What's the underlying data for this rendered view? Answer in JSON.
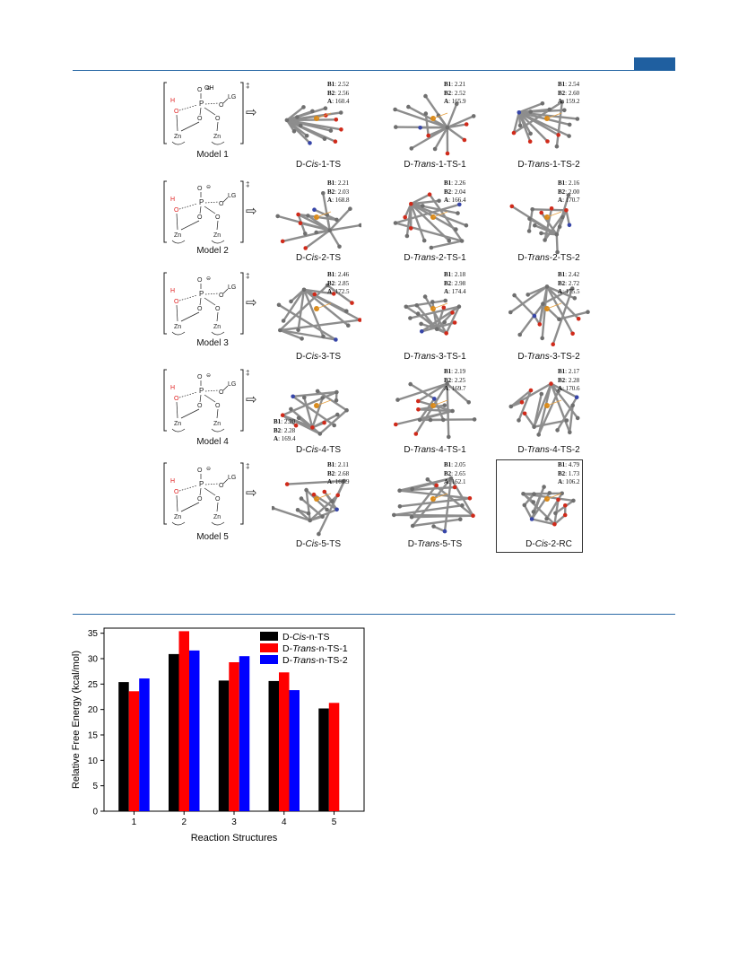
{
  "figure": {
    "rows": [
      {
        "model": "Model 1",
        "structures": [
          {
            "label_prefix": "D-",
            "label_italic": "Cis",
            "label_suffix": "-1-TS",
            "B1": "2.52",
            "B2": "2.56",
            "A": "160.4"
          },
          {
            "label_prefix": "D-",
            "label_italic": "Trans",
            "label_suffix": "-1-TS-1",
            "B1": "2.21",
            "B2": "2.52",
            "A": "165.9"
          },
          {
            "label_prefix": "D-",
            "label_italic": "Trans",
            "label_suffix": "-1-TS-2",
            "B1": "2.54",
            "B2": "2.60",
            "A": "159.2"
          }
        ]
      },
      {
        "model": "Model 2",
        "structures": [
          {
            "label_prefix": "D-",
            "label_italic": "Cis",
            "label_suffix": "-2-TS",
            "B1": "2.21",
            "B2": "2.03",
            "A": "168.8"
          },
          {
            "label_prefix": "D-",
            "label_italic": "Trans",
            "label_suffix": "-2-TS-1",
            "B1": "2.26",
            "B2": "2.04",
            "A": "166.4"
          },
          {
            "label_prefix": "D-",
            "label_italic": "Trans",
            "label_suffix": "-2-TS-2",
            "B1": "2.16",
            "B2": "2.00",
            "A": "170.7"
          }
        ]
      },
      {
        "model": "Model 3",
        "structures": [
          {
            "label_prefix": "D-",
            "label_italic": "Cis",
            "label_suffix": "-3-TS",
            "B1": "2.46",
            "B2": "2.85",
            "A": "172.5"
          },
          {
            "label_prefix": "D-",
            "label_italic": "Trans",
            "label_suffix": "-3-TS-1",
            "B1": "2.18",
            "B2": "2.98",
            "A": "174.4"
          },
          {
            "label_prefix": "D-",
            "label_italic": "Trans",
            "label_suffix": "-3-TS-2",
            "B1": "2.42",
            "B2": "2.72",
            "A": "175.5"
          }
        ]
      },
      {
        "model": "Model 4",
        "structures": [
          {
            "label_prefix": "D-",
            "label_italic": "Cis",
            "label_suffix": "-4-TS",
            "B1": "2.20",
            "B2": "2.28",
            "A": "169.4"
          },
          {
            "label_prefix": "D-",
            "label_italic": "Trans",
            "label_suffix": "-4-TS-1",
            "B1": "2.19",
            "B2": "2.25",
            "A": "169.7"
          },
          {
            "label_prefix": "D-",
            "label_italic": "Trans",
            "label_suffix": "-4-TS-2",
            "B1": "2.17",
            "B2": "2.28",
            "A": "170.6"
          }
        ]
      },
      {
        "model": "Model 5",
        "structures": [
          {
            "label_prefix": "D-",
            "label_italic": "Cis",
            "label_suffix": "-5-TS",
            "B1": "2.11",
            "B2": "2.68",
            "A": "160.9"
          },
          {
            "label_prefix": "D-",
            "label_italic": "Trans",
            "label_suffix": "-5-TS",
            "B1": "2.05",
            "B2": "2.65",
            "A": "162.1"
          },
          {
            "label_prefix": "D-",
            "label_italic": "Cis",
            "label_suffix": "-2-RC",
            "B1": "4.79",
            "B2": "1.73",
            "A": "106.2"
          }
        ]
      }
    ],
    "geo_keys": {
      "b1": "B1",
      "b2": "B2",
      "a": "A"
    },
    "scheme_text": {
      "lg": "LG",
      "zn": "Zn",
      "o": "O",
      "oh": "OH",
      "p": "P",
      "h": "H",
      "dagger": "‡",
      "minus": "⊖"
    }
  },
  "chart_data": {
    "type": "bar",
    "categories": [
      "1",
      "2",
      "3",
      "4",
      "5"
    ],
    "series": [
      {
        "name": "D-Cis-n-TS",
        "name_prefix": "D-",
        "name_italic": "Cis",
        "name_suffix": "-n-TS",
        "color": "#000000",
        "values": [
          25.4,
          30.9,
          25.7,
          25.6,
          20.2
        ]
      },
      {
        "name": "D-Trans-n-TS-1",
        "name_prefix": "D-",
        "name_italic": "Trans",
        "name_suffix": "-n-TS-1",
        "color": "#ff0000",
        "values": [
          23.6,
          35.4,
          29.3,
          27.3,
          21.3
        ]
      },
      {
        "name": "D-Trans-n-TS-2",
        "name_prefix": "D-",
        "name_italic": "Trans",
        "name_suffix": "-n-TS-2",
        "color": "#0000ff",
        "values": [
          26.1,
          31.6,
          30.5,
          23.8,
          null
        ]
      }
    ],
    "xlabel": "Reaction Structures",
    "ylabel": "Relative Free Energy (kcal/mol)",
    "ylim": [
      0,
      36
    ],
    "yticks": [
      "0",
      "5",
      "10",
      "15",
      "20",
      "25",
      "30",
      "35"
    ],
    "legend": "top-right",
    "grid": false
  }
}
